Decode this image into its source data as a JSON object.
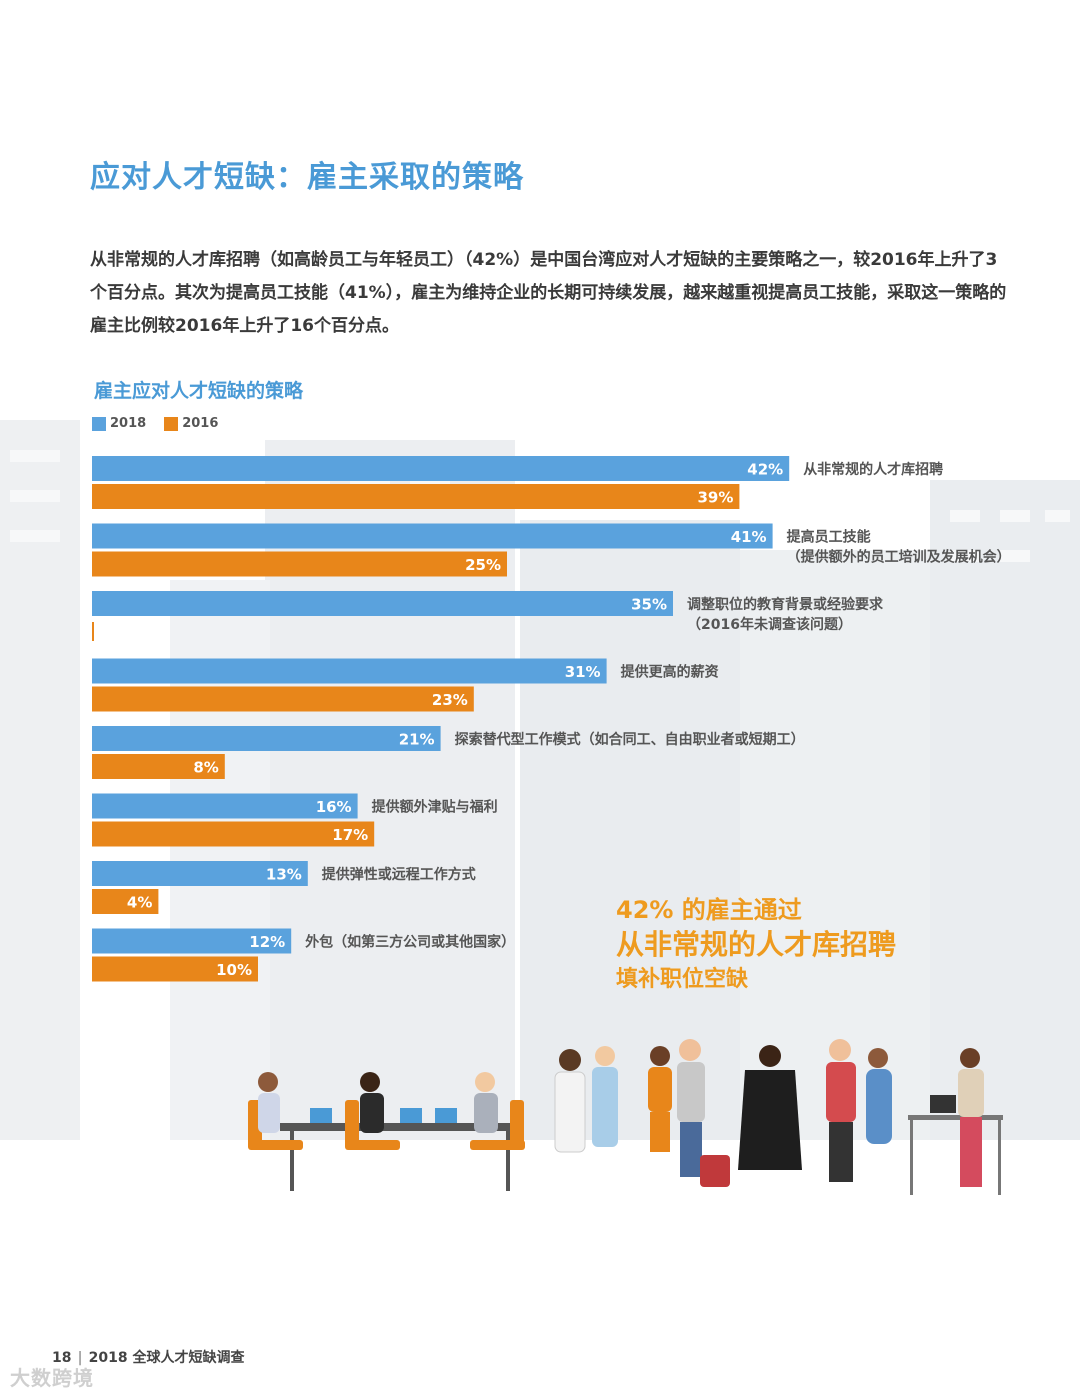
{
  "page": {
    "title": "应对人才短缺：雇主采取的策略",
    "intro": "从非常规的人才库招聘（如高龄员工与年轻员工）（42%）是中国台湾应对人才短缺的主要策略之一，较2016年上升了3个百分点。其次为提高员工技能（41%），雇主为维持企业的长期可持续发展，越来越重视提高员工技能，采取这一策略的雇主比例较2016年上升了16个百分点。"
  },
  "chart_data": {
    "type": "bar",
    "orientation": "horizontal",
    "title": "雇主应对人才短缺的策略",
    "legend_position": "top-left",
    "xlim": [
      0,
      100
    ],
    "categories": [
      [
        "从非常规的人才库招聘"
      ],
      [
        "提高员工技能",
        "（提供额外的员工培训及发展机会）"
      ],
      [
        "调整职位的教育背景或经验要求",
        "（2016年未调查该问题）"
      ],
      [
        "提供更高的薪资"
      ],
      [
        "探索替代型工作模式（如合同工、自由职业者或短期工）"
      ],
      [
        "提供额外津贴与福利"
      ],
      [
        "提供弹性或远程工作方式"
      ],
      [
        "外包（如第三方公司或其他国家）"
      ]
    ],
    "series": [
      {
        "name": "2018",
        "color": "#5aa2dd",
        "values": [
          42,
          41,
          35,
          31,
          21,
          16,
          13,
          12
        ],
        "labels": [
          "42%",
          "41%",
          "35%",
          "31%",
          "21%",
          "16%",
          "13%",
          "12%"
        ]
      },
      {
        "name": "2016",
        "color": "#e8861a",
        "values": [
          39,
          25,
          null,
          23,
          8,
          17,
          4,
          10
        ],
        "labels": [
          "39%",
          "25%",
          "",
          "23%",
          "8%",
          "17%",
          "4%",
          "10%"
        ]
      }
    ]
  },
  "callout": {
    "line1": "42% 的雇主通过",
    "line2": "从非常规的人才库招聘",
    "line3": "填补职位空缺",
    "color": "#ee9b1f"
  },
  "footer": {
    "page_number": "18",
    "separator": "|",
    "report_title": "2018 全球人才短缺调查"
  },
  "watermark": "大数跨境"
}
